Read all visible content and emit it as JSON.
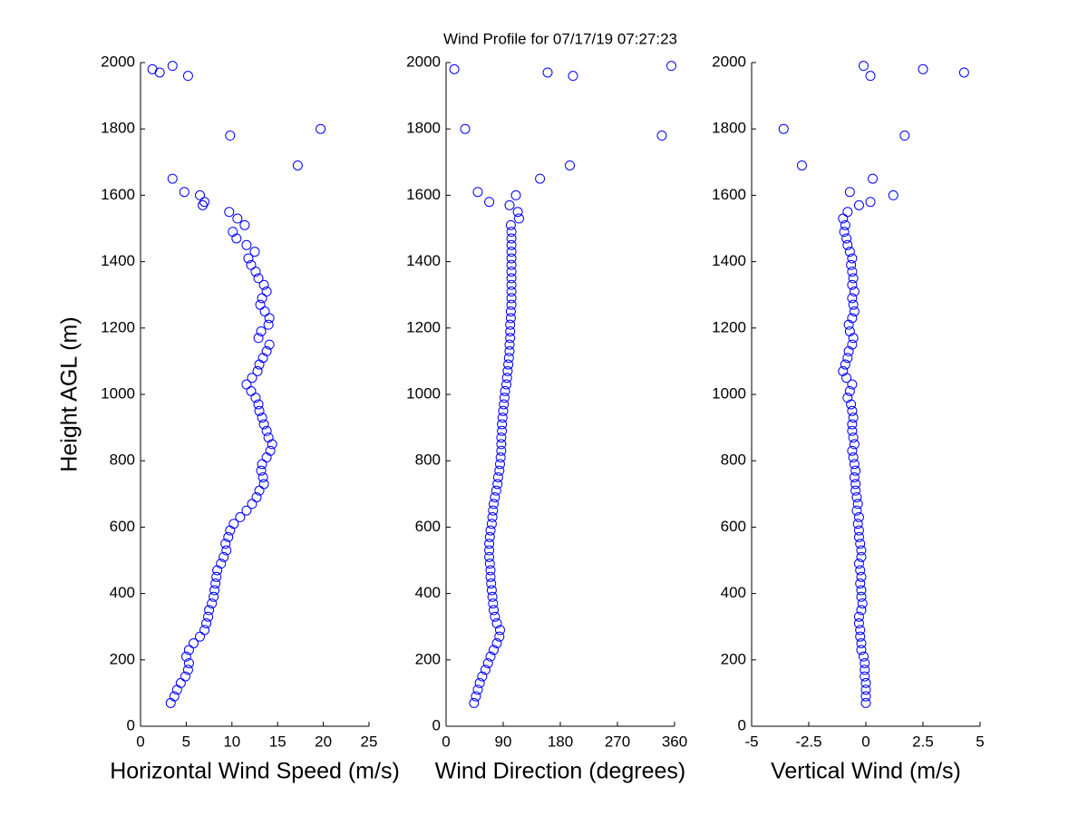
{
  "chart_data": [
    {
      "type": "scatter",
      "ylabel": "Height AGL (m)",
      "xlabel": "Horizontal Wind Speed (m/s)",
      "color": "#0000ff",
      "xlim": [
        0,
        25
      ],
      "xticks": [
        0,
        5,
        10,
        15,
        20,
        25
      ],
      "ylim": [
        0,
        2000
      ],
      "yticks": [
        0,
        200,
        400,
        600,
        800,
        1000,
        1200,
        1400,
        1600,
        1800,
        2000
      ],
      "x": [
        3.3,
        3.7,
        4.0,
        4.4,
        4.9,
        5.2,
        5.3,
        5.0,
        5.3,
        5.8,
        6.5,
        7.0,
        7.2,
        7.4,
        7.5,
        7.8,
        8.0,
        8.1,
        8.2,
        8.3,
        8.4,
        8.8,
        9.1,
        9.4,
        9.3,
        9.6,
        9.8,
        10.2,
        10.9,
        11.6,
        12.2,
        12.7,
        13.0,
        13.5,
        13.4,
        13.2,
        13.3,
        13.8,
        14.2,
        14.4,
        14.0,
        13.8,
        13.5,
        13.3,
        13.0,
        12.9,
        12.6,
        12.1,
        11.6,
        12.2,
        12.8,
        13.0,
        13.4,
        13.8,
        14.1,
        12.9,
        13.2,
        14.0,
        14.1,
        13.6,
        13.1,
        13.3,
        13.8,
        13.5,
        12.9,
        12.6,
        12.1,
        11.8,
        12.5,
        11.6,
        10.5,
        10.1,
        11.4,
        10.6,
        9.7,
        6.8,
        7.0,
        6.5,
        4.8,
        3.5,
        17.2,
        9.8,
        19.7,
        5.2,
        2.1,
        1.3,
        3.5
      ],
      "y": [
        70,
        90,
        110,
        130,
        150,
        170,
        190,
        210,
        230,
        250,
        270,
        290,
        310,
        330,
        350,
        370,
        390,
        410,
        430,
        450,
        470,
        490,
        510,
        530,
        550,
        570,
        590,
        610,
        630,
        650,
        670,
        690,
        710,
        730,
        750,
        770,
        790,
        810,
        830,
        850,
        870,
        890,
        910,
        930,
        950,
        970,
        990,
        1010,
        1030,
        1050,
        1070,
        1090,
        1110,
        1130,
        1150,
        1170,
        1190,
        1210,
        1230,
        1250,
        1270,
        1290,
        1310,
        1330,
        1350,
        1370,
        1390,
        1410,
        1430,
        1450,
        1470,
        1490,
        1510,
        1530,
        1550,
        1570,
        1580,
        1600,
        1610,
        1650,
        1690,
        1780,
        1800,
        1960,
        1970,
        1980,
        1990
      ]
    },
    {
      "type": "scatter",
      "title": "Wind Profile for  07/17/19 07:27:23",
      "xlabel": "Wind Direction (degrees)",
      "color": "#0000ff",
      "xlim": [
        0,
        360
      ],
      "xticks": [
        0,
        90,
        180,
        270,
        360
      ],
      "ylim": [
        0,
        2000
      ],
      "yticks": [
        0,
        200,
        400,
        600,
        800,
        1000,
        1200,
        1400,
        1600,
        1800,
        2000
      ],
      "x": [
        44,
        47,
        50,
        53,
        57,
        62,
        66,
        70,
        75,
        80,
        84,
        85,
        80,
        77,
        75,
        74,
        73,
        72,
        71,
        70,
        70,
        69,
        68,
        68,
        68,
        69,
        70,
        72,
        73,
        74,
        75,
        77,
        79,
        81,
        82,
        84,
        85,
        86,
        87,
        87,
        87,
        88,
        88,
        89,
        90,
        91,
        92,
        93,
        95,
        96,
        97,
        98,
        99,
        100,
        100,
        101,
        101,
        101,
        102,
        102,
        103,
        103,
        103,
        103,
        103,
        103,
        103,
        103,
        103,
        103,
        103,
        103,
        102,
        115,
        113,
        100,
        68,
        110,
        50,
        148,
        195,
        340,
        30,
        200,
        160,
        13,
        355
      ],
      "y": [
        70,
        90,
        110,
        130,
        150,
        170,
        190,
        210,
        230,
        250,
        270,
        290,
        310,
        330,
        350,
        370,
        390,
        410,
        430,
        450,
        470,
        490,
        510,
        530,
        550,
        570,
        590,
        610,
        630,
        650,
        670,
        690,
        710,
        730,
        750,
        770,
        790,
        810,
        830,
        850,
        870,
        890,
        910,
        930,
        950,
        970,
        990,
        1010,
        1030,
        1050,
        1070,
        1090,
        1110,
        1130,
        1150,
        1170,
        1190,
        1210,
        1230,
        1250,
        1270,
        1290,
        1310,
        1330,
        1350,
        1370,
        1390,
        1410,
        1430,
        1450,
        1470,
        1490,
        1510,
        1530,
        1550,
        1570,
        1580,
        1600,
        1610,
        1650,
        1690,
        1780,
        1800,
        1960,
        1970,
        1980,
        1990
      ]
    },
    {
      "type": "scatter",
      "xlabel": "Vertical Wind (m/s)",
      "color": "#0000ff",
      "xlim": [
        -5,
        5
      ],
      "xticks": [
        -5,
        -2.5,
        0,
        2.5,
        5
      ],
      "ylim": [
        0,
        2000
      ],
      "yticks": [
        0,
        200,
        400,
        600,
        800,
        1000,
        1200,
        1400,
        1600,
        1800,
        2000
      ],
      "x": [
        0.0,
        0.0,
        0.0,
        0.0,
        -0.05,
        -0.05,
        -0.05,
        -0.1,
        -0.2,
        -0.2,
        -0.25,
        -0.25,
        -0.3,
        -0.3,
        -0.2,
        -0.15,
        -0.2,
        -0.2,
        -0.25,
        -0.2,
        -0.25,
        -0.3,
        -0.2,
        -0.2,
        -0.25,
        -0.3,
        -0.3,
        -0.35,
        -0.3,
        -0.4,
        -0.35,
        -0.4,
        -0.45,
        -0.45,
        -0.5,
        -0.45,
        -0.5,
        -0.55,
        -0.6,
        -0.5,
        -0.55,
        -0.6,
        -0.6,
        -0.55,
        -0.6,
        -0.65,
        -0.8,
        -0.7,
        -0.6,
        -0.85,
        -1.0,
        -0.9,
        -0.8,
        -0.75,
        -0.6,
        -0.55,
        -0.7,
        -0.75,
        -0.6,
        -0.5,
        -0.55,
        -0.6,
        -0.5,
        -0.6,
        -0.55,
        -0.6,
        -0.65,
        -0.6,
        -0.7,
        -0.8,
        -0.85,
        -0.95,
        -0.9,
        -1.0,
        -0.8,
        -0.3,
        0.2,
        1.2,
        -0.7,
        0.3,
        -2.8,
        1.7,
        -3.6,
        0.2,
        4.3,
        2.5,
        -0.1
      ],
      "y": [
        70,
        90,
        110,
        130,
        150,
        170,
        190,
        210,
        230,
        250,
        270,
        290,
        310,
        330,
        350,
        370,
        390,
        410,
        430,
        450,
        470,
        490,
        510,
        530,
        550,
        570,
        590,
        610,
        630,
        650,
        670,
        690,
        710,
        730,
        750,
        770,
        790,
        810,
        830,
        850,
        870,
        890,
        910,
        930,
        950,
        970,
        990,
        1010,
        1030,
        1050,
        1070,
        1090,
        1110,
        1130,
        1150,
        1170,
        1190,
        1210,
        1230,
        1250,
        1270,
        1290,
        1310,
        1330,
        1350,
        1370,
        1390,
        1410,
        1430,
        1450,
        1470,
        1490,
        1510,
        1530,
        1550,
        1570,
        1580,
        1600,
        1610,
        1650,
        1690,
        1780,
        1800,
        1960,
        1970,
        1980,
        1990
      ]
    }
  ]
}
